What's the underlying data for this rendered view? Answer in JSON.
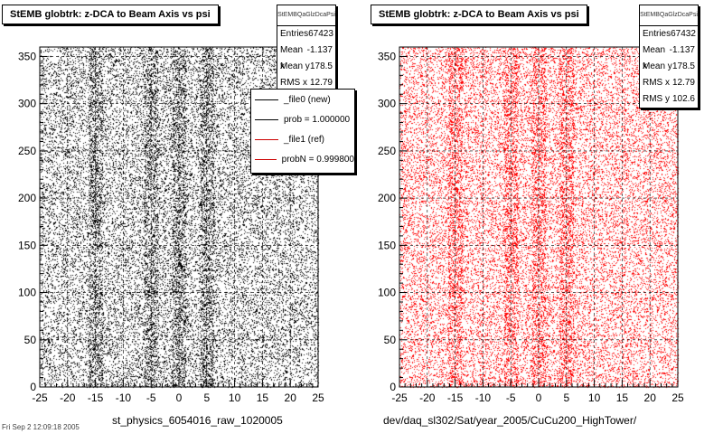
{
  "colors": {
    "left_points": "#000000",
    "right_points": "#ff0000",
    "ref_line": "#cc0000"
  },
  "chart_data": [
    {
      "type": "scatter",
      "title": "StEMB globtrk: z-DCA to Beam Axis vs psi",
      "xlabel": "st_physics_6054016_raw_1020005",
      "ylabel": "",
      "xlim": [
        -25,
        25
      ],
      "ylim": [
        0,
        360
      ],
      "xticks": [
        -25,
        -20,
        -15,
        -10,
        -5,
        0,
        5,
        10,
        15,
        20,
        25
      ],
      "yticks": [
        0,
        50,
        100,
        150,
        200,
        250,
        300,
        350
      ],
      "grid": true,
      "point_color": "#000000",
      "entries": 67423,
      "density": "uniform scatter with denser vertical bands near x = -15, -5, 0, 5",
      "stats": {
        "header": "StEMBQaGlzDcaPsi",
        "rows": [
          {
            "label": "Entries",
            "value": "67423"
          },
          {
            "label": "Mean x",
            "value": "-1.137"
          },
          {
            "label": "Mean y",
            "value": "178.5"
          },
          {
            "label": "RMS x",
            "value": "12.79"
          }
        ]
      },
      "legend": {
        "placement": "top-right",
        "entries": [
          {
            "label": "_file0 (new)",
            "color": "#000000"
          },
          {
            "label": "prob = 1.000000",
            "color": "#000000"
          },
          {
            "label": "_file1 (ref)",
            "color": "#cc0000"
          },
          {
            "label": "probN = 0.999800",
            "color": "#cc0000"
          }
        ]
      }
    },
    {
      "type": "scatter",
      "title": "StEMB globtrk: z-DCA to Beam Axis vs psi",
      "xlabel": "dev/daq_sl302/Sat/year_2005/CuCu200_HighTower/",
      "ylabel": "",
      "xlim": [
        -25,
        25
      ],
      "ylim": [
        0,
        360
      ],
      "xticks": [
        -25,
        -20,
        -15,
        -10,
        -5,
        0,
        5,
        10,
        15,
        20,
        25
      ],
      "yticks": [
        0,
        50,
        100,
        150,
        200,
        250,
        300,
        350
      ],
      "grid": true,
      "point_color": "#ff0000",
      "entries": 67432,
      "stats": {
        "header": "StEMBQaGlzDcaPsi",
        "rows": [
          {
            "label": "Entries",
            "value": "67432"
          },
          {
            "label": "Mean x",
            "value": "-1.137"
          },
          {
            "label": "Mean y",
            "value": "178.5"
          },
          {
            "label": "RMS x",
            "value": "12.79"
          },
          {
            "label": "RMS y",
            "value": "102.6"
          }
        ]
      }
    }
  ],
  "corner_text": "Fri Sep 2 12:09:18 2005"
}
